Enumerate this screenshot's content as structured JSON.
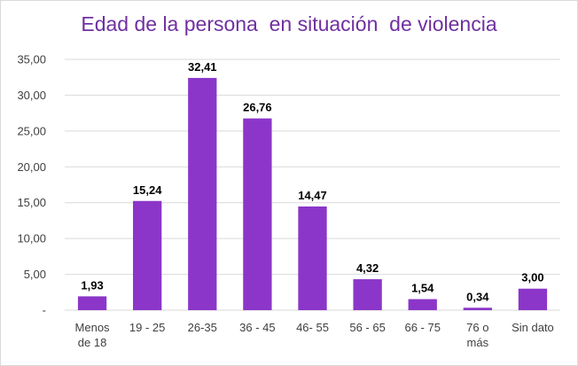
{
  "chart_data": {
    "type": "bar",
    "title": "Edad de la persona  en situación  de violencia",
    "categories": [
      [
        "Menos",
        "de 18"
      ],
      [
        "19 - 25"
      ],
      [
        "26-35"
      ],
      [
        "36 - 45"
      ],
      [
        "46- 55"
      ],
      [
        "56 - 65"
      ],
      [
        "66 - 75"
      ],
      [
        "76  o",
        "más"
      ],
      [
        "Sin dato"
      ]
    ],
    "values": [
      1.93,
      15.24,
      32.41,
      26.76,
      14.47,
      4.32,
      1.54,
      0.34,
      3.0
    ],
    "data_labels": [
      "1,93",
      "15,24",
      "32,41",
      "26,76",
      "14,47",
      "4,32",
      "1,54",
      "0,34",
      "3,00"
    ],
    "ylim": [
      0,
      35
    ],
    "y_ticks": [
      {
        "value": 0,
        "label": "-"
      },
      {
        "value": 5,
        "label": "5,00"
      },
      {
        "value": 10,
        "label": "10,00"
      },
      {
        "value": 15,
        "label": "15,00"
      },
      {
        "value": 20,
        "label": "20,00"
      },
      {
        "value": 25,
        "label": "25,00"
      },
      {
        "value": 30,
        "label": "30,00"
      },
      {
        "value": 35,
        "label": "35,00"
      }
    ],
    "grid": true,
    "legend": "none",
    "bar_color": "#8b36c9",
    "title_color": "#7030a0"
  }
}
